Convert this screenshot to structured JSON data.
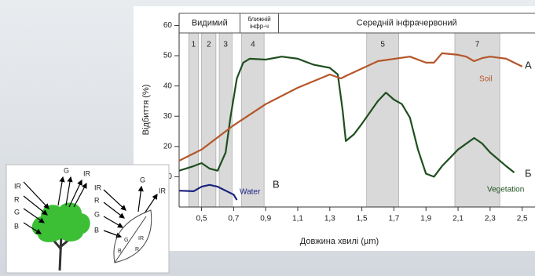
{
  "chart_data": {
    "type": "line",
    "y_label": "Відбиття (%)",
    "x_label": "Довжина хвилі (µm)",
    "xlim": [
      0.36,
      2.58
    ],
    "ylim": [
      0,
      64
    ],
    "xticks": [
      {
        "value": 0.5,
        "label": "0,5"
      },
      {
        "value": 0.7,
        "label": "0,7"
      },
      {
        "value": 0.9,
        "label": "0,9"
      },
      {
        "value": 1.1,
        "label": "1,1"
      },
      {
        "value": 1.3,
        "label": "1,3"
      },
      {
        "value": 1.5,
        "label": "1,5"
      },
      {
        "value": 1.7,
        "label": "1,7"
      },
      {
        "value": 1.9,
        "label": "1,9"
      },
      {
        "value": 2.1,
        "label": "2,1"
      },
      {
        "value": 2.3,
        "label": "2,3"
      },
      {
        "value": 2.5,
        "label": "2,5"
      }
    ],
    "yticks": [
      10,
      20,
      30,
      40,
      50,
      60
    ],
    "regions": [
      {
        "lines": [
          "Видимий"
        ],
        "range": [
          0.36,
          0.74
        ]
      },
      {
        "lines": [
          "ближній",
          "інфр-ч"
        ],
        "range": [
          0.74,
          0.98
        ]
      },
      {
        "lines": [
          "Середній інфрачервоний"
        ],
        "range": [
          0.98,
          2.58
        ]
      }
    ],
    "bands": [
      {
        "label": "1",
        "range": [
          0.42,
          0.48
        ]
      },
      {
        "label": "2",
        "range": [
          0.5,
          0.59
        ]
      },
      {
        "label": "3",
        "range": [
          0.61,
          0.69
        ]
      },
      {
        "label": "4",
        "range": [
          0.75,
          0.89
        ]
      },
      {
        "label": "5",
        "range": [
          1.53,
          1.73
        ]
      },
      {
        "label": "7",
        "range": [
          2.08,
          2.36
        ]
      }
    ],
    "series": [
      {
        "name": "Vegetation",
        "letter": "Б",
        "color": "#1f4f1f",
        "x": [
          0.36,
          0.45,
          0.5,
          0.55,
          0.6,
          0.65,
          0.68,
          0.72,
          0.76,
          0.8,
          0.9,
          1.0,
          1.1,
          1.2,
          1.3,
          1.35,
          1.38,
          1.4,
          1.45,
          1.5,
          1.6,
          1.65,
          1.7,
          1.75,
          1.8,
          1.85,
          1.9,
          1.95,
          2.0,
          2.1,
          2.2,
          2.25,
          2.3,
          2.4,
          2.45
        ],
        "values": [
          12,
          13.5,
          14.5,
          12.7,
          12,
          18,
          29.5,
          42.5,
          47.7,
          49,
          48.7,
          49.7,
          49,
          47,
          46,
          43.8,
          32,
          21.8,
          24,
          27.5,
          35,
          37.8,
          35.5,
          34,
          29.5,
          19,
          11,
          10,
          13.5,
          19,
          22.8,
          21,
          18,
          13.5,
          11.4
        ]
      },
      {
        "name": "Soil",
        "letter": "A",
        "color": "#b5562a",
        "x": [
          0.36,
          0.5,
          0.7,
          0.9,
          1.1,
          1.3,
          1.37,
          1.4,
          1.6,
          1.8,
          1.9,
          1.95,
          2.0,
          2.1,
          2.15,
          2.2,
          2.25,
          2.3,
          2.4,
          2.5
        ],
        "values": [
          15.3,
          19,
          27,
          34,
          39.4,
          43.8,
          42.5,
          43.3,
          48.2,
          49.7,
          47.7,
          47.7,
          50.8,
          50.3,
          49.7,
          48.2,
          49.2,
          49.7,
          49,
          46.4
        ]
      },
      {
        "name": "Water",
        "letter": "B",
        "color": "#1a237e",
        "x": [
          0.36,
          0.45,
          0.5,
          0.55,
          0.6,
          0.7,
          0.72
        ],
        "values": [
          5.4,
          5.2,
          6.7,
          7.3,
          6.7,
          4.1,
          2.3
        ]
      }
    ]
  },
  "inset": {
    "labels": [
      "IR",
      "R",
      "G",
      "B",
      "G",
      "IR",
      "IR",
      "R",
      "G",
      "B",
      "G",
      "IR",
      "B",
      "G",
      "R",
      "IR"
    ]
  }
}
